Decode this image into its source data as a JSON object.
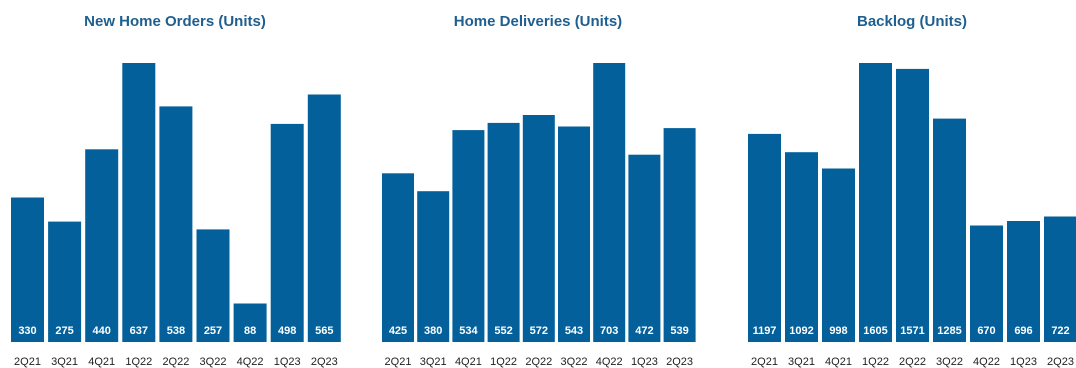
{
  "colors": {
    "bar": "#03609a",
    "title": "#1f5f8f",
    "label": "#ffffff",
    "tick": "#222222"
  },
  "chart_data": [
    {
      "type": "bar",
      "title": "New Home Orders (Units)",
      "categories": [
        "2Q21",
        "3Q21",
        "4Q21",
        "1Q22",
        "2Q22",
        "3Q22",
        "4Q22",
        "1Q23",
        "2Q23"
      ],
      "values": [
        330,
        275,
        440,
        637,
        538,
        257,
        88,
        498,
        565
      ],
      "ylim": [
        0,
        637
      ],
      "grid": false,
      "legend": "none"
    },
    {
      "type": "bar",
      "title": "Home Deliveries (Units)",
      "categories": [
        "2Q21",
        "3Q21",
        "4Q21",
        "1Q22",
        "2Q22",
        "3Q22",
        "4Q22",
        "1Q23",
        "2Q23"
      ],
      "values": [
        425,
        380,
        534,
        552,
        572,
        543,
        703,
        472,
        539
      ],
      "ylim": [
        0,
        703
      ],
      "grid": false,
      "legend": "none"
    },
    {
      "type": "bar",
      "title": "Backlog (Units)",
      "categories": [
        "2Q21",
        "3Q21",
        "4Q21",
        "1Q22",
        "2Q22",
        "3Q22",
        "4Q22",
        "1Q23",
        "2Q23"
      ],
      "values": [
        1197,
        1092,
        998,
        1605,
        1571,
        1285,
        670,
        696,
        722
      ],
      "ylim": [
        0,
        1605
      ],
      "grid": false,
      "legend": "none"
    }
  ]
}
